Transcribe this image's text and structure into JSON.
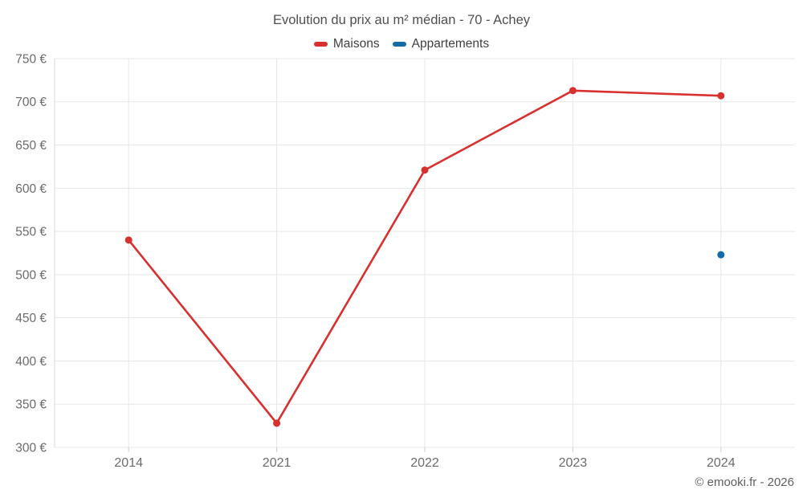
{
  "header": {
    "title": "Evolution du prix au m² médian - 70 - Achey"
  },
  "footer": {
    "copyright": "© emooki.fr - 2026"
  },
  "chart_data": {
    "type": "line",
    "title": "Evolution du prix au m² médian - 70 - Achey",
    "categories": [
      "2014",
      "2021",
      "2022",
      "2023",
      "2024"
    ],
    "series": [
      {
        "name": "Maisons",
        "color": "#d7302f",
        "values": [
          540,
          328,
          621,
          713,
          707
        ]
      },
      {
        "name": "Appartements",
        "color": "#136ca5",
        "values": [
          null,
          null,
          null,
          null,
          523
        ]
      }
    ],
    "xlabel": "",
    "ylabel": "",
    "ylabel_format": "{value} €",
    "ylim": [
      300,
      750
    ],
    "ytick_step": 50,
    "grid": true,
    "legend_position": "top",
    "grid_color": "#e7e7e7",
    "axis_line_color": "#d9d9d9",
    "tick_color": "#cccccc",
    "axis_label_color": "#6b6b6b"
  }
}
